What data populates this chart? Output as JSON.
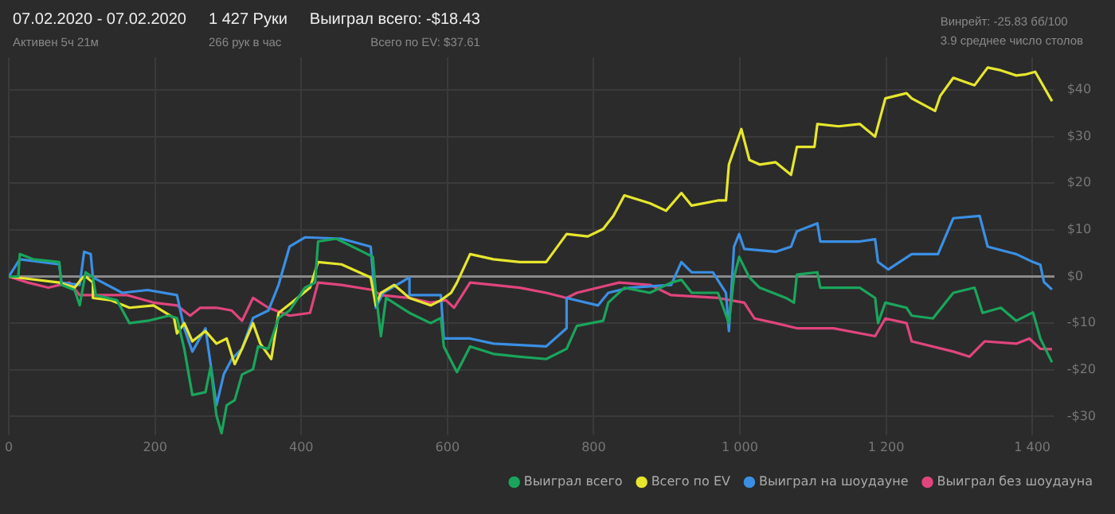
{
  "chart_data": {
    "type": "line",
    "annotations": [
      "07.02.2020 - 07.02.2020",
      "Активен 5ч 21м",
      "1 427 Руки",
      "266 рук в час",
      "Выиграл всего: -$18.43",
      "Всего по EV: $37.61",
      "Винрейт: -25.83 бб/100",
      "3.9 среднее число столов"
    ],
    "xlim": [
      0,
      1430
    ],
    "xticks": [
      0,
      200,
      400,
      600,
      800,
      {
        "value": 1000,
        "label": "1 000"
      },
      {
        "value": 1200,
        "label": "1 200"
      },
      {
        "value": 1400,
        "label": "1 400"
      }
    ],
    "ylim": [
      -34,
      47
    ],
    "yticks": [
      {
        "value": -30,
        "label": "-$30"
      },
      {
        "value": -20,
        "label": "-$20"
      },
      {
        "value": -10,
        "label": "-$10"
      },
      {
        "value": 0,
        "label": "$0"
      },
      {
        "value": 10,
        "label": "$10"
      },
      {
        "value": 20,
        "label": "$20"
      },
      {
        "value": 30,
        "label": "$30"
      },
      {
        "value": 40,
        "label": "$40"
      }
    ],
    "grid": true,
    "legend": "bottom right",
    "marker": "none",
    "line_style": "solid",
    "series": [
      {
        "name": "Выиграл всего",
        "color": "#1aa55c",
        "x": [
          0,
          13,
          15,
          33,
          69,
          72,
          90,
          97,
          105,
          115,
          119,
          148,
          165,
          190,
          219,
          230,
          240,
          251,
          269,
          276,
          284,
          291,
          298,
          309,
          319,
          334,
          341,
          355,
          369,
          384,
          405,
          419,
          423,
          448,
          484,
          498,
          502,
          509,
          516,
          548,
          577,
          591,
          595,
          613,
          631,
          663,
          699,
          735,
          763,
          777,
          813,
          820,
          842,
          877,
          906,
          920,
          934,
          970,
          985,
          992,
          999,
          1013,
          1027,
          1063,
          1074,
          1078,
          1106,
          1110,
          1164,
          1185,
          1189,
          1199,
          1228,
          1235,
          1264,
          1292,
          1321,
          1332,
          1357,
          1378,
          1401,
          1411,
          1427
        ],
        "values": [
          0,
          0,
          4.8,
          3.7,
          3.1,
          -1.8,
          -2.9,
          -6.2,
          0.9,
          -0.2,
          -4,
          -5.1,
          -10,
          -9.5,
          -8.4,
          -8.9,
          -15.5,
          -25.4,
          -24.8,
          -19.4,
          -29.8,
          -33.6,
          -27.6,
          -26.5,
          -21,
          -19.9,
          -15,
          -15.5,
          -8.9,
          -7.3,
          -2.4,
          -1.3,
          7.5,
          8.1,
          5.3,
          4.2,
          -3.5,
          -12.8,
          -4.6,
          -7.8,
          -10,
          -8.9,
          -15,
          -20.5,
          -15,
          -16.6,
          -17.2,
          -17.7,
          -15.5,
          -10.6,
          -9.5,
          -5.6,
          -2.4,
          -3.5,
          -1.3,
          -0.7,
          -3.5,
          -3.5,
          -10,
          -0.2,
          4.2,
          -0.2,
          -2.4,
          -4.6,
          -5.6,
          0.4,
          0.9,
          -2.4,
          -2.4,
          -4.6,
          -10,
          -5.6,
          -6.7,
          -8.4,
          -9,
          -3.5,
          -2.4,
          -7.8,
          -6.7,
          -9.5,
          -7.7,
          -13.3,
          -18.4
        ]
      },
      {
        "name": "Всего по EV",
        "color": "#e6e62e",
        "x": [
          0,
          69,
          90,
          101,
          105,
          115,
          115,
          140,
          165,
          198,
          226,
          230,
          240,
          251,
          269,
          284,
          298,
          309,
          319,
          334,
          344,
          359,
          369,
          387,
          412,
          423,
          455,
          495,
          502,
          509,
          527,
          548,
          577,
          591,
          605,
          613,
          631,
          663,
          699,
          735,
          763,
          792,
          813,
          827,
          842,
          877,
          899,
          920,
          934,
          970,
          981,
          985,
          1002,
          1013,
          1027,
          1049,
          1070,
          1078,
          1102,
          1106,
          1135,
          1164,
          1185,
          1199,
          1228,
          1235,
          1267,
          1274,
          1292,
          1321,
          1339,
          1357,
          1378,
          1390,
          1404,
          1427
        ],
        "values": [
          0,
          -1.3,
          -2.4,
          -0.2,
          0,
          -1.3,
          -4.6,
          -5.1,
          -6.7,
          -6.2,
          -8.9,
          -12.2,
          -10,
          -13.9,
          -11.7,
          -14.4,
          -13.3,
          -18.8,
          -15.5,
          -10,
          -14.4,
          -17.7,
          -7.8,
          -5.6,
          -2.4,
          3.1,
          2.6,
          -0.2,
          -6.2,
          -3.5,
          -1.8,
          -4.6,
          -6.2,
          -5.1,
          -3.5,
          -1.3,
          4.8,
          3.7,
          3.1,
          3.1,
          9.1,
          8.6,
          10.2,
          13,
          17.4,
          15.7,
          14.1,
          17.9,
          15.2,
          16.3,
          16.3,
          24,
          31.6,
          25,
          24,
          24.5,
          21.8,
          27.8,
          27.8,
          32.7,
          32.2,
          32.7,
          30,
          38.2,
          39.3,
          38.2,
          35.5,
          38.7,
          42.6,
          41,
          44.8,
          44.2,
          43.1,
          43.3,
          43.9,
          37.6
        ]
      },
      {
        "name": "Выиграл на шоудауне",
        "color": "#3b8fe4",
        "x": [
          0,
          15,
          69,
          72,
          97,
          103,
          112,
          115,
          155,
          190,
          230,
          240,
          251,
          269,
          284,
          294,
          305,
          319,
          334,
          355,
          369,
          384,
          405,
          455,
          495,
          502,
          512,
          548,
          548,
          591,
          595,
          631,
          663,
          735,
          763,
          763,
          806,
          820,
          849,
          906,
          920,
          934,
          963,
          981,
          985,
          992,
          999,
          1006,
          1049,
          1070,
          1078,
          1106,
          1110,
          1164,
          1185,
          1189,
          1203,
          1235,
          1271,
          1292,
          1328,
          1339,
          1378,
          1401,
          1411,
          1416,
          1427
        ],
        "values": [
          0,
          3.7,
          2.6,
          -1.3,
          -1.8,
          5.3,
          4.8,
          -0.2,
          -3.5,
          -2.9,
          -4,
          -11.1,
          -16.1,
          -11.1,
          -27.6,
          -21,
          -17.7,
          -15.5,
          -8.9,
          -7.3,
          -1.8,
          6.4,
          8.4,
          8.1,
          6.4,
          -6.7,
          -3.5,
          -0.2,
          -4,
          -4,
          -13.3,
          -13.3,
          -14.4,
          -15,
          -11.1,
          -4.6,
          -6.2,
          -3.5,
          -2.4,
          -1.8,
          3.1,
          0.9,
          0.9,
          -3.5,
          -11.7,
          6.4,
          9.1,
          5.9,
          5.3,
          6.4,
          9.7,
          11.4,
          7.5,
          7.5,
          8,
          3.1,
          1.5,
          4.8,
          4.8,
          12.5,
          13,
          6.4,
          4.8,
          3.1,
          2.5,
          -1.2,
          -2.8
        ]
      },
      {
        "name": "Выиграл без шоудауна",
        "color": "#e0457d",
        "x": [
          0,
          26,
          54,
          83,
          97,
          126,
          162,
          198,
          230,
          248,
          262,
          284,
          305,
          319,
          334,
          355,
          384,
          412,
          423,
          455,
          498,
          509,
          548,
          577,
          598,
          609,
          631,
          663,
          699,
          735,
          763,
          777,
          835,
          877,
          906,
          970,
          1006,
          1020,
          1049,
          1078,
          1128,
          1185,
          1199,
          1228,
          1235,
          1292,
          1314,
          1335,
          1378,
          1396,
          1411,
          1427
        ],
        "values": [
          0,
          -1.3,
          -2.4,
          -1.3,
          -4,
          -4,
          -4,
          -5.6,
          -6.2,
          -8.4,
          -6.7,
          -6.7,
          -7.3,
          -9.5,
          -4.6,
          -6.7,
          -8.4,
          -7.8,
          -1.3,
          -1.8,
          -2.9,
          -4,
          -4.6,
          -5.6,
          -5.1,
          -6.7,
          -1.3,
          -1.8,
          -2.4,
          -3.5,
          -4.6,
          -3.5,
          -1.3,
          -1.8,
          -4,
          -4.6,
          -5.6,
          -9,
          -10,
          -11.1,
          -11.1,
          -12.8,
          -9,
          -10,
          -13.9,
          -16.1,
          -17.2,
          -13.9,
          -14.4,
          -13.3,
          -15.5,
          -15.6
        ]
      }
    ]
  }
}
